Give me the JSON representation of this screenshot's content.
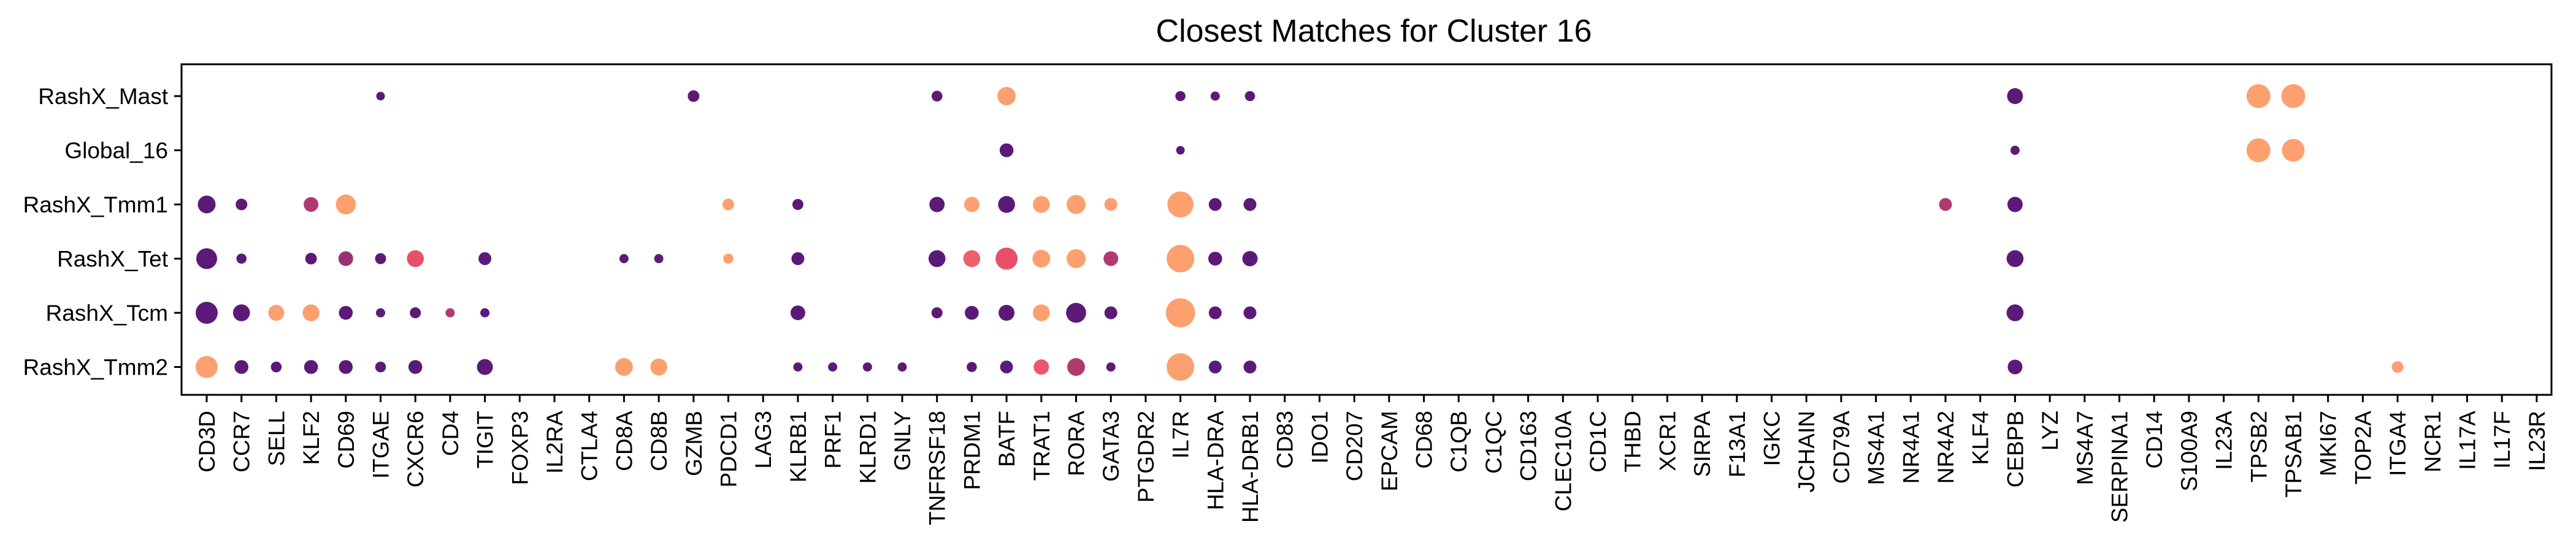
{
  "chart_data": {
    "type": "scatter",
    "title": "Closest Matches for Cluster 16",
    "xlabel": "",
    "ylabel": "",
    "grid": false,
    "legend": "none",
    "genes": [
      "CD3D",
      "CCR7",
      "SELL",
      "KLF2",
      "CD69",
      "ITGAE",
      "CXCR6",
      "CD4",
      "TIGIT",
      "FOXP3",
      "IL2RA",
      "CTLA4",
      "CD8A",
      "CD8B",
      "GZMB",
      "PDCD1",
      "LAG3",
      "KLRB1",
      "PRF1",
      "KLRD1",
      "GNLY",
      "TNFRSF18",
      "PRDM1",
      "BATF",
      "TRAT1",
      "RORA",
      "GATA3",
      "PTGDR2",
      "IL7R",
      "HLA-DRA",
      "HLA-DRB1",
      "CD83",
      "IDO1",
      "CD207",
      "EPCAM",
      "CD68",
      "C1QB",
      "C1QC",
      "CD163",
      "CLEC10A",
      "CD1C",
      "THBD",
      "XCR1",
      "SIRPA",
      "F13A1",
      "IGKC",
      "JCHAIN",
      "CD79A",
      "MS4A1",
      "NR4A1",
      "NR4A2",
      "KLF4",
      "CEBPB",
      "LYZ",
      "MS4A7",
      "SERPINA1",
      "CD14",
      "S100A9",
      "IL23A",
      "TPSB2",
      "TPSAB1",
      "MKI67",
      "TOP2A",
      "ITGA4",
      "NCR1",
      "IL17A",
      "IL17F",
      "IL23R"
    ],
    "groups": [
      "RashX_Mast",
      "Global_16",
      "RashX_Tmm1",
      "RashX_Tet",
      "RashX_Tcm",
      "RashX_Tmm2"
    ],
    "color_scale": {
      "low": "#5c1a78",
      "mid": "#e8506a",
      "high": "#fca070"
    },
    "points": [
      {
        "group": "RashX_Mast",
        "gene": "ITGAE",
        "size": 0.28,
        "color": 0.0
      },
      {
        "group": "RashX_Mast",
        "gene": "GZMB",
        "size": 0.38,
        "color": 0.0
      },
      {
        "group": "RashX_Mast",
        "gene": "TNFRSF18",
        "size": 0.35,
        "color": 0.0
      },
      {
        "group": "RashX_Mast",
        "gene": "BATF",
        "size": 0.6,
        "color": 1.0
      },
      {
        "group": "RashX_Mast",
        "gene": "IL7R",
        "size": 0.33,
        "color": 0.0
      },
      {
        "group": "RashX_Mast",
        "gene": "HLA-DRA",
        "size": 0.3,
        "color": 0.0
      },
      {
        "group": "RashX_Mast",
        "gene": "HLA-DRB1",
        "size": 0.33,
        "color": 0.0
      },
      {
        "group": "RashX_Mast",
        "gene": "CEBPB",
        "size": 0.52,
        "color": 0.0
      },
      {
        "group": "RashX_Mast",
        "gene": "TPSB2",
        "size": 0.78,
        "color": 1.0
      },
      {
        "group": "RashX_Mast",
        "gene": "TPSAB1",
        "size": 0.78,
        "color": 1.0
      },
      {
        "group": "Global_16",
        "gene": "BATF",
        "size": 0.45,
        "color": 0.0
      },
      {
        "group": "Global_16",
        "gene": "IL7R",
        "size": 0.28,
        "color": 0.0
      },
      {
        "group": "Global_16",
        "gene": "CEBPB",
        "size": 0.3,
        "color": 0.0
      },
      {
        "group": "Global_16",
        "gene": "TPSB2",
        "size": 0.78,
        "color": 1.0
      },
      {
        "group": "Global_16",
        "gene": "TPSAB1",
        "size": 0.74,
        "color": 1.0
      },
      {
        "group": "RashX_Tmm1",
        "gene": "CD3D",
        "size": 0.58,
        "color": 0.0
      },
      {
        "group": "RashX_Tmm1",
        "gene": "CCR7",
        "size": 0.38,
        "color": 0.0
      },
      {
        "group": "RashX_Tmm1",
        "gene": "KLF2",
        "size": 0.48,
        "color": 0.3
      },
      {
        "group": "RashX_Tmm1",
        "gene": "CD69",
        "size": 0.65,
        "color": 1.0
      },
      {
        "group": "RashX_Tmm1",
        "gene": "PDCD1",
        "size": 0.38,
        "color": 1.0
      },
      {
        "group": "RashX_Tmm1",
        "gene": "KLRB1",
        "size": 0.36,
        "color": 0.0
      },
      {
        "group": "RashX_Tmm1",
        "gene": "TNFRSF18",
        "size": 0.5,
        "color": 0.0
      },
      {
        "group": "RashX_Tmm1",
        "gene": "PRDM1",
        "size": 0.5,
        "color": 1.0
      },
      {
        "group": "RashX_Tmm1",
        "gene": "BATF",
        "size": 0.55,
        "color": 0.0
      },
      {
        "group": "RashX_Tmm1",
        "gene": "TRAT1",
        "size": 0.55,
        "color": 1.0
      },
      {
        "group": "RashX_Tmm1",
        "gene": "RORA",
        "size": 0.62,
        "color": 1.0
      },
      {
        "group": "RashX_Tmm1",
        "gene": "GATA3",
        "size": 0.42,
        "color": 1.0
      },
      {
        "group": "RashX_Tmm1",
        "gene": "IL7R",
        "size": 0.85,
        "color": 1.0
      },
      {
        "group": "RashX_Tmm1",
        "gene": "HLA-DRA",
        "size": 0.42,
        "color": 0.0
      },
      {
        "group": "RashX_Tmm1",
        "gene": "HLA-DRB1",
        "size": 0.42,
        "color": 0.0
      },
      {
        "group": "RashX_Tmm1",
        "gene": "NR4A2",
        "size": 0.42,
        "color": 0.3
      },
      {
        "group": "RashX_Tmm1",
        "gene": "CEBPB",
        "size": 0.5,
        "color": 0.0
      },
      {
        "group": "RashX_Tet",
        "gene": "CD3D",
        "size": 0.68,
        "color": 0.0
      },
      {
        "group": "RashX_Tet",
        "gene": "CCR7",
        "size": 0.33,
        "color": 0.0
      },
      {
        "group": "RashX_Tet",
        "gene": "KLF2",
        "size": 0.38,
        "color": 0.0
      },
      {
        "group": "RashX_Tet",
        "gene": "CD69",
        "size": 0.48,
        "color": 0.22
      },
      {
        "group": "RashX_Tet",
        "gene": "ITGAE",
        "size": 0.36,
        "color": 0.0
      },
      {
        "group": "RashX_Tet",
        "gene": "CXCR6",
        "size": 0.55,
        "color": 0.5
      },
      {
        "group": "RashX_Tet",
        "gene": "TIGIT",
        "size": 0.42,
        "color": 0.0
      },
      {
        "group": "RashX_Tet",
        "gene": "CD8A",
        "size": 0.3,
        "color": 0.0
      },
      {
        "group": "RashX_Tet",
        "gene": "CD8B",
        "size": 0.3,
        "color": 0.0
      },
      {
        "group": "RashX_Tet",
        "gene": "PDCD1",
        "size": 0.33,
        "color": 1.0
      },
      {
        "group": "RashX_Tet",
        "gene": "KLRB1",
        "size": 0.42,
        "color": 0.0
      },
      {
        "group": "RashX_Tet",
        "gene": "TNFRSF18",
        "size": 0.55,
        "color": 0.0
      },
      {
        "group": "RashX_Tet",
        "gene": "PRDM1",
        "size": 0.55,
        "color": 0.6
      },
      {
        "group": "RashX_Tet",
        "gene": "BATF",
        "size": 0.72,
        "color": 0.5
      },
      {
        "group": "RashX_Tet",
        "gene": "TRAT1",
        "size": 0.58,
        "color": 1.0
      },
      {
        "group": "RashX_Tet",
        "gene": "RORA",
        "size": 0.62,
        "color": 1.0
      },
      {
        "group": "RashX_Tet",
        "gene": "GATA3",
        "size": 0.48,
        "color": 0.3
      },
      {
        "group": "RashX_Tet",
        "gene": "IL7R",
        "size": 0.9,
        "color": 1.0
      },
      {
        "group": "RashX_Tet",
        "gene": "HLA-DRA",
        "size": 0.45,
        "color": 0.0
      },
      {
        "group": "RashX_Tet",
        "gene": "HLA-DRB1",
        "size": 0.5,
        "color": 0.0
      },
      {
        "group": "RashX_Tet",
        "gene": "CEBPB",
        "size": 0.55,
        "color": 0.0
      },
      {
        "group": "RashX_Tcm",
        "gene": "CD3D",
        "size": 0.72,
        "color": 0.0
      },
      {
        "group": "RashX_Tcm",
        "gene": "CCR7",
        "size": 0.55,
        "color": 0.0
      },
      {
        "group": "RashX_Tcm",
        "gene": "SELL",
        "size": 0.52,
        "color": 1.0
      },
      {
        "group": "RashX_Tcm",
        "gene": "KLF2",
        "size": 0.55,
        "color": 1.0
      },
      {
        "group": "RashX_Tcm",
        "gene": "CD69",
        "size": 0.45,
        "color": 0.0
      },
      {
        "group": "RashX_Tcm",
        "gene": "ITGAE",
        "size": 0.3,
        "color": 0.0
      },
      {
        "group": "RashX_Tcm",
        "gene": "CXCR6",
        "size": 0.36,
        "color": 0.0
      },
      {
        "group": "RashX_Tcm",
        "gene": "CD4",
        "size": 0.3,
        "color": 0.3
      },
      {
        "group": "RashX_Tcm",
        "gene": "TIGIT",
        "size": 0.3,
        "color": 0.0
      },
      {
        "group": "RashX_Tcm",
        "gene": "KLRB1",
        "size": 0.48,
        "color": 0.0
      },
      {
        "group": "RashX_Tcm",
        "gene": "TNFRSF18",
        "size": 0.36,
        "color": 0.0
      },
      {
        "group": "RashX_Tcm",
        "gene": "PRDM1",
        "size": 0.45,
        "color": 0.0
      },
      {
        "group": "RashX_Tcm",
        "gene": "BATF",
        "size": 0.52,
        "color": 0.0
      },
      {
        "group": "RashX_Tcm",
        "gene": "TRAT1",
        "size": 0.55,
        "color": 1.0
      },
      {
        "group": "RashX_Tcm",
        "gene": "RORA",
        "size": 0.65,
        "color": 0.0
      },
      {
        "group": "RashX_Tcm",
        "gene": "GATA3",
        "size": 0.42,
        "color": 0.0
      },
      {
        "group": "RashX_Tcm",
        "gene": "IL7R",
        "size": 0.95,
        "color": 1.0
      },
      {
        "group": "RashX_Tcm",
        "gene": "HLA-DRA",
        "size": 0.42,
        "color": 0.0
      },
      {
        "group": "RashX_Tcm",
        "gene": "HLA-DRB1",
        "size": 0.42,
        "color": 0.0
      },
      {
        "group": "RashX_Tcm",
        "gene": "CEBPB",
        "size": 0.55,
        "color": 0.0
      },
      {
        "group": "RashX_Tmm2",
        "gene": "CD3D",
        "size": 0.72,
        "color": 1.0
      },
      {
        "group": "RashX_Tmm2",
        "gene": "CCR7",
        "size": 0.45,
        "color": 0.0
      },
      {
        "group": "RashX_Tmm2",
        "gene": "SELL",
        "size": 0.35,
        "color": 0.0
      },
      {
        "group": "RashX_Tmm2",
        "gene": "KLF2",
        "size": 0.45,
        "color": 0.0
      },
      {
        "group": "RashX_Tmm2",
        "gene": "CD69",
        "size": 0.45,
        "color": 0.0
      },
      {
        "group": "RashX_Tmm2",
        "gene": "ITGAE",
        "size": 0.35,
        "color": 0.0
      },
      {
        "group": "RashX_Tmm2",
        "gene": "CXCR6",
        "size": 0.45,
        "color": 0.0
      },
      {
        "group": "RashX_Tmm2",
        "gene": "TIGIT",
        "size": 0.52,
        "color": 0.0
      },
      {
        "group": "RashX_Tmm2",
        "gene": "CD8A",
        "size": 0.58,
        "color": 1.0
      },
      {
        "group": "RashX_Tmm2",
        "gene": "CD8B",
        "size": 0.55,
        "color": 1.0
      },
      {
        "group": "RashX_Tmm2",
        "gene": "KLRB1",
        "size": 0.3,
        "color": 0.0
      },
      {
        "group": "RashX_Tmm2",
        "gene": "PRF1",
        "size": 0.3,
        "color": 0.0
      },
      {
        "group": "RashX_Tmm2",
        "gene": "KLRD1",
        "size": 0.3,
        "color": 0.0
      },
      {
        "group": "RashX_Tmm2",
        "gene": "GNLY",
        "size": 0.3,
        "color": 0.0
      },
      {
        "group": "RashX_Tmm2",
        "gene": "PRDM1",
        "size": 0.33,
        "color": 0.0
      },
      {
        "group": "RashX_Tmm2",
        "gene": "BATF",
        "size": 0.42,
        "color": 0.0
      },
      {
        "group": "RashX_Tmm2",
        "gene": "TRAT1",
        "size": 0.5,
        "color": 0.55
      },
      {
        "group": "RashX_Tmm2",
        "gene": "RORA",
        "size": 0.58,
        "color": 0.3
      },
      {
        "group": "RashX_Tmm2",
        "gene": "GATA3",
        "size": 0.3,
        "color": 0.0
      },
      {
        "group": "RashX_Tmm2",
        "gene": "IL7R",
        "size": 0.9,
        "color": 1.0
      },
      {
        "group": "RashX_Tmm2",
        "gene": "HLA-DRA",
        "size": 0.42,
        "color": 0.0
      },
      {
        "group": "RashX_Tmm2",
        "gene": "HLA-DRB1",
        "size": 0.42,
        "color": 0.0
      },
      {
        "group": "RashX_Tmm2",
        "gene": "CEBPB",
        "size": 0.48,
        "color": 0.0
      },
      {
        "group": "RashX_Tmm2",
        "gene": "ITGA4",
        "size": 0.38,
        "color": 1.0
      }
    ]
  }
}
